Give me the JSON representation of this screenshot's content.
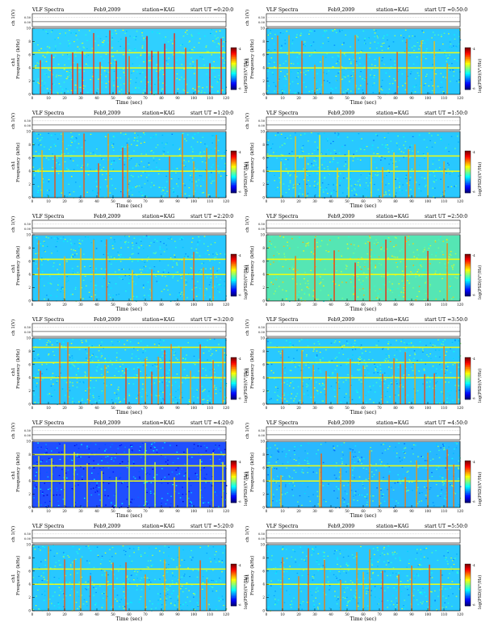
{
  "chart_data": [
    {
      "type": "heatmap",
      "title_left": "VLF Spectra",
      "date": "Feb9,2009",
      "station": "station=KAG",
      "start": "start  UT =0:20:0",
      "amp_label": "ch 1(V)",
      "amp_ticks": [
        "0.00",
        "0.50"
      ],
      "ylabel": "Frequency  (kHz)",
      "ylabel_ch": "ch1",
      "xlabel": "Time  (sec)",
      "cbar_label": "log(PSD)(V²/Hz)",
      "cbar_ticks": [
        "-4",
        "-6"
      ],
      "ylim": [
        0,
        10
      ],
      "xlim": [
        0,
        120
      ],
      "band_top_khz": 9.9,
      "vlines": [
        5,
        12,
        25,
        28,
        31,
        38,
        42,
        48,
        52,
        58,
        60,
        71,
        74,
        78,
        82,
        88,
        95,
        102,
        110,
        117
      ],
      "hlines": [
        4,
        6.3
      ],
      "bg": "#2fd0ff",
      "base": 0.46,
      "spot_rate": 0.5,
      "stripe_intensity": 0.78
    },
    {
      "type": "heatmap",
      "title_left": "VLF Spectra",
      "date": "Feb9,2009",
      "station": "station=KAG",
      "start": "start  UT =0:50:0",
      "amp_label": "ch 1(V)",
      "amp_ticks": [
        "0.00",
        "0.50"
      ],
      "ylabel": "Frequency  (kHz)",
      "ylabel_ch": "ch1",
      "xlabel": "Time  (sec)",
      "cbar_label": "log(PSD)(V²/Hz)",
      "cbar_ticks": [
        "-4",
        "-6"
      ],
      "ylim": [
        0,
        10
      ],
      "xlim": [
        0,
        120
      ],
      "band_top_khz": 9.9,
      "vlines": [
        7,
        14,
        22,
        30,
        35,
        46,
        55,
        62,
        70,
        81,
        87,
        96,
        104,
        112
      ],
      "hlines": [
        4,
        6.3
      ],
      "bg": "#28c8ff",
      "base": 0.42,
      "spot_rate": 0.5,
      "stripe_intensity": 0.68
    },
    {
      "type": "heatmap",
      "title_left": "VLF Spectra",
      "date": "Feb9,2009",
      "station": "station=KAG",
      "start": "start  UT =1:20:0",
      "amp_label": "ch 1(V)",
      "amp_ticks": [
        "0.00",
        "0.50"
      ],
      "ylabel": "Frequency  (kHz)",
      "ylabel_ch": "ch1",
      "xlabel": "Time  (sec)",
      "cbar_label": "log(PSD)(V²/Hz)",
      "cbar_ticks": [
        "-4",
        "-6"
      ],
      "ylim": [
        0,
        10
      ],
      "xlim": [
        0,
        120
      ],
      "band_top_khz": 9.9,
      "vlines": [
        6,
        14,
        19,
        32,
        41,
        47,
        56,
        59,
        85,
        93,
        100,
        108,
        114
      ],
      "hlines": [
        4,
        6.3
      ],
      "bg": "#28c8ff",
      "base": 0.42,
      "spot_rate": 0.5,
      "stripe_intensity": 0.7
    },
    {
      "type": "heatmap",
      "title_left": "VLF Spectra",
      "date": "Feb9,2009",
      "station": "station=KAG",
      "start": "start  UT =1:50:0",
      "amp_label": "ch 1(V)",
      "amp_ticks": [
        "0.00",
        "0.50"
      ],
      "ylabel": "Frequency  (kHz)",
      "ylabel_ch": "ch1",
      "xlabel": "Time  (sec)",
      "cbar_label": "log(PSD)(V²/Hz)",
      "cbar_ticks": [
        "-4",
        "-6"
      ],
      "ylim": [
        0,
        10
      ],
      "xlim": [
        0,
        120
      ],
      "band_top_khz": 9.9,
      "vlines": [
        9,
        18,
        24,
        33,
        44,
        51,
        65,
        72,
        79,
        88,
        92,
        100,
        110
      ],
      "hlines": [
        4,
        6.3
      ],
      "bg": "#28c8ff",
      "base": 0.4,
      "spot_rate": 0.5,
      "stripe_intensity": 0.62
    },
    {
      "type": "heatmap",
      "title_left": "VLF Spectra",
      "date": "Feb9,2009",
      "station": "station=KAG",
      "start": "start  UT =2:20:0",
      "amp_label": "ch 1(V)",
      "amp_ticks": [
        "0.00",
        "0.50"
      ],
      "ylabel": "Frequency  (kHz)",
      "ylabel_ch": "ch1",
      "xlabel": "Time  (sec)",
      "cbar_label": "log(PSD)(V²/Hz)",
      "cbar_ticks": [
        "-4",
        "-6"
      ],
      "ylim": [
        0,
        10
      ],
      "xlim": [
        0,
        120
      ],
      "band_top_khz": 9.9,
      "vlines": [
        4,
        20,
        30,
        38,
        46,
        62,
        74,
        94,
        100,
        106,
        112
      ],
      "hlines": [
        4,
        6.3
      ],
      "bg": "#28c8ff",
      "base": 0.42,
      "spot_rate": 0.5,
      "stripe_intensity": 0.68
    },
    {
      "type": "heatmap",
      "title_left": "VLF Spectra",
      "date": "Feb9,2009",
      "station": "station=KAG",
      "start": "start  UT =2:50:0",
      "amp_label": "ch 1(V)",
      "amp_ticks": [
        "0.00",
        "0.50"
      ],
      "ylabel": "Frequency  (kHz)",
      "ylabel_ch": "ch1",
      "xlabel": "Time  (sec)",
      "cbar_label": "log(PSD)(V²/Hz)",
      "cbar_ticks": [
        "-4",
        "-6"
      ],
      "ylim": [
        0,
        10
      ],
      "xlim": [
        0,
        120
      ],
      "band_top_khz": 9.9,
      "vlines": [
        18,
        30,
        42,
        55,
        64,
        74,
        86,
        100,
        112
      ],
      "hlines": [
        4,
        6.3
      ],
      "bg": "#55e6b4",
      "base": 0.55,
      "spot_rate": 0.45,
      "stripe_intensity": 0.75
    },
    {
      "type": "heatmap",
      "title_left": "VLF Spectra",
      "date": "Feb9,2009",
      "station": "station=KAG",
      "start": "start  UT =3:20:0",
      "amp_label": "ch 1(V)",
      "amp_ticks": [
        "0.00",
        "0.50"
      ],
      "ylabel": "Frequency  (kHz)",
      "ylabel_ch": "ch1",
      "xlabel": "Time  (sec)",
      "cbar_label": "log(PSD)(V²/Hz)",
      "cbar_ticks": [
        "-4",
        "-6"
      ],
      "ylim": [
        0,
        10
      ],
      "xlim": [
        0,
        120
      ],
      "band_top_khz": 9.9,
      "vlines": [
        5,
        17,
        22,
        35,
        45,
        58,
        66,
        70,
        74,
        78,
        82,
        86,
        92,
        98,
        104,
        112,
        118
      ],
      "hlines": [
        4,
        6.3,
        8.6
      ],
      "bg": "#28c8ff",
      "base": 0.44,
      "spot_rate": 0.55,
      "stripe_intensity": 0.72
    },
    {
      "type": "heatmap",
      "title_left": "VLF Spectra",
      "date": "Feb9,2009",
      "station": "station=KAG",
      "start": "start  UT =3:50:0",
      "amp_label": "ch 1(V)",
      "amp_ticks": [
        "0.00",
        "0.50"
      ],
      "ylabel": "Frequency  (kHz)",
      "ylabel_ch": "ch1",
      "xlabel": "Time  (sec)",
      "cbar_label": "log(PSD)(V²/Hz)",
      "cbar_ticks": [
        "-4",
        "-6"
      ],
      "ylim": [
        0,
        10
      ],
      "xlim": [
        0,
        120
      ],
      "band_top_khz": 9.9,
      "vlines": [
        10,
        22,
        29,
        37,
        44,
        52,
        60,
        72,
        79,
        83,
        86,
        92,
        98,
        104,
        110,
        118
      ],
      "hlines": [
        4,
        6.3,
        8.6
      ],
      "bg": "#28c8ff",
      "base": 0.42,
      "spot_rate": 0.55,
      "stripe_intensity": 0.7
    },
    {
      "type": "heatmap",
      "title_left": "VLF Spectra",
      "date": "Feb9,2009",
      "station": "station=KAG",
      "start": "start  UT =4:20:0",
      "amp_label": "ch 1(V)",
      "amp_ticks": [
        "0.00",
        "0.50"
      ],
      "ylabel": "Frequency  (kHz)",
      "ylabel_ch": "ch1",
      "xlabel": "Time  (sec)",
      "cbar_label": "log(PSD)(V²/Hz)",
      "cbar_ticks": [
        "-4",
        "-6"
      ],
      "ylim": [
        0,
        10
      ],
      "xlim": [
        0,
        120
      ],
      "band_top_khz": 9.9,
      "vlines": [
        4,
        12,
        20,
        26,
        34,
        43,
        52,
        60,
        70,
        76,
        88,
        96,
        104,
        112,
        118
      ],
      "hlines": [
        4,
        6.3,
        8
      ],
      "bg": "#1f4fff",
      "base": 0.22,
      "spot_rate": 0.5,
      "stripe_intensity": 0.55
    },
    {
      "type": "heatmap",
      "title_left": "VLF Spectra",
      "date": "Feb9,2009",
      "station": "station=KAG",
      "start": "start  UT =4:50:0",
      "amp_label": "ch 1(V)",
      "amp_ticks": [
        "0.00",
        "0.50"
      ],
      "ylabel": "Frequency  (kHz)",
      "ylabel_ch": "ch1",
      "xlabel": "Time  (sec)",
      "cbar_label": "log(PSD)(V²/Hz)",
      "cbar_ticks": [
        "-4",
        "-6"
      ],
      "ylim": [
        0,
        10
      ],
      "xlim": [
        0,
        120
      ],
      "band_top_khz": 9.9,
      "vlines": [
        3,
        9,
        33,
        34,
        46,
        52,
        64,
        70,
        76,
        86,
        93,
        100,
        112,
        116
      ],
      "hlines": [
        4,
        6.3
      ],
      "bg": "#28b8ff",
      "base": 0.38,
      "spot_rate": 0.5,
      "stripe_intensity": 0.68
    },
    {
      "type": "heatmap",
      "title_left": "VLF Spectra",
      "date": "Feb9,2009",
      "station": "station=KAG",
      "start": "start  UT =5:20:0",
      "amp_label": "ch 1(V)",
      "amp_ticks": [
        "0.00",
        "0.50"
      ],
      "ylabel": "Frequency  (kHz)",
      "ylabel_ch": "ch1",
      "xlabel": "Time  (sec)",
      "cbar_label": "log(PSD)(V²/Hz)",
      "cbar_ticks": [
        "-4",
        "-6"
      ],
      "ylim": [
        0,
        10
      ],
      "xlim": [
        0,
        120
      ],
      "band_top_khz": 9.9,
      "vlines": [
        10,
        20,
        26,
        30,
        36,
        46,
        50,
        58,
        70,
        82,
        91,
        104,
        108
      ],
      "hlines": [
        4,
        6.3
      ],
      "bg": "#28c8ff",
      "base": 0.42,
      "spot_rate": 0.5,
      "stripe_intensity": 0.7
    },
    {
      "type": "heatmap",
      "title_left": "VLF Spectra",
      "date": "Feb9,2009",
      "station": "station=KAG",
      "start": "start  UT =5:50:0",
      "amp_label": "ch 1(V)",
      "amp_ticks": [
        "0.00",
        "0.50"
      ],
      "ylabel": "Frequency  (kHz)",
      "ylabel_ch": "ch1",
      "xlabel": "Time  (sec)",
      "cbar_label": "log(PSD)(V²/Hz)",
      "cbar_ticks": [
        "-4",
        "-6"
      ],
      "ylim": [
        0,
        10
      ],
      "xlim": [
        0,
        120
      ],
      "band_top_khz": 9.9,
      "vlines": [
        10,
        20,
        26,
        36,
        46,
        56,
        60,
        64,
        72,
        82,
        90,
        101,
        108
      ],
      "hlines": [
        4,
        6.3
      ],
      "bg": "#28c8ff",
      "base": 0.42,
      "spot_rate": 0.5,
      "stripe_intensity": 0.7
    }
  ],
  "x_ticks": [
    0,
    10,
    20,
    30,
    40,
    50,
    60,
    70,
    80,
    90,
    100,
    110,
    120
  ],
  "y_ticks": [
    0,
    2,
    4,
    6,
    8,
    10
  ],
  "palette": [
    "#000080",
    "#0000ff",
    "#0080ff",
    "#00ffff",
    "#80ff80",
    "#ffff00",
    "#ff8000",
    "#ff0000",
    "#800000"
  ]
}
